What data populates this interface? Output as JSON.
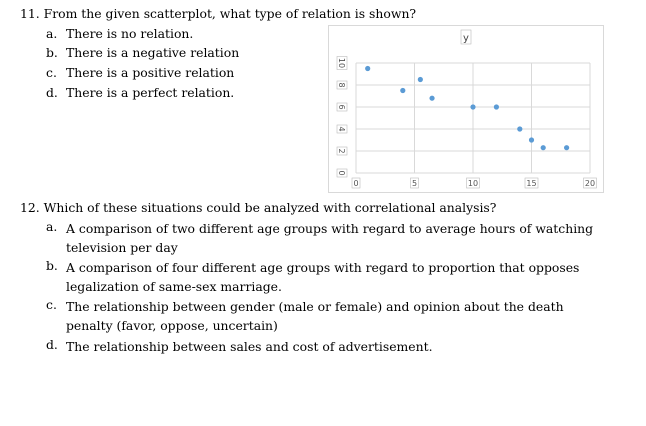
{
  "questions": [
    {
      "number_text": "11. From the given scatterplot, what type of relation is shown?",
      "options": [
        {
          "letter": "a.",
          "text": "There is no relation."
        },
        {
          "letter": "b.",
          "text": "There is a negative relation"
        },
        {
          "letter": "c.",
          "text": "There is a positive relation"
        },
        {
          "letter": "d.",
          "text": "There is a perfect relation."
        }
      ]
    },
    {
      "number_text": "12. Which of these situations could be analyzed with correlational analysis?",
      "options": [
        {
          "letter": "a.",
          "text": "A comparison of two different age groups with regard to average hours of watching television per day"
        },
        {
          "letter": "b.",
          "text": "A comparison of four different age groups with regard to proportion that opposes legalization of same-sex marriage."
        },
        {
          "letter": "c.",
          "text": "The relationship between gender (male or female) and opinion about the death penalty (favor, oppose, uncertain)"
        },
        {
          "letter": "d.",
          "text": "The relationship between sales and cost of advertisement."
        }
      ]
    }
  ],
  "chart_data": {
    "type": "scatter",
    "title": "",
    "xlabel": "",
    "ylabel": "y",
    "xlim": [
      0,
      20
    ],
    "ylim": [
      0,
      10
    ],
    "xticks": [
      "0",
      "5",
      "10",
      "15",
      "20"
    ],
    "yticks": [
      "0",
      "2",
      "4",
      "6",
      "8",
      "10"
    ],
    "grid": true,
    "point_color": "#5b9bd5",
    "points": [
      {
        "x": 1,
        "y": 9.5
      },
      {
        "x": 4,
        "y": 7.5
      },
      {
        "x": 5.5,
        "y": 8.5
      },
      {
        "x": 6.5,
        "y": 6.8
      },
      {
        "x": 10,
        "y": 6
      },
      {
        "x": 12,
        "y": 6
      },
      {
        "x": 14,
        "y": 4
      },
      {
        "x": 15,
        "y": 3
      },
      {
        "x": 16,
        "y": 2.3
      },
      {
        "x": 18,
        "y": 2.3
      }
    ]
  }
}
